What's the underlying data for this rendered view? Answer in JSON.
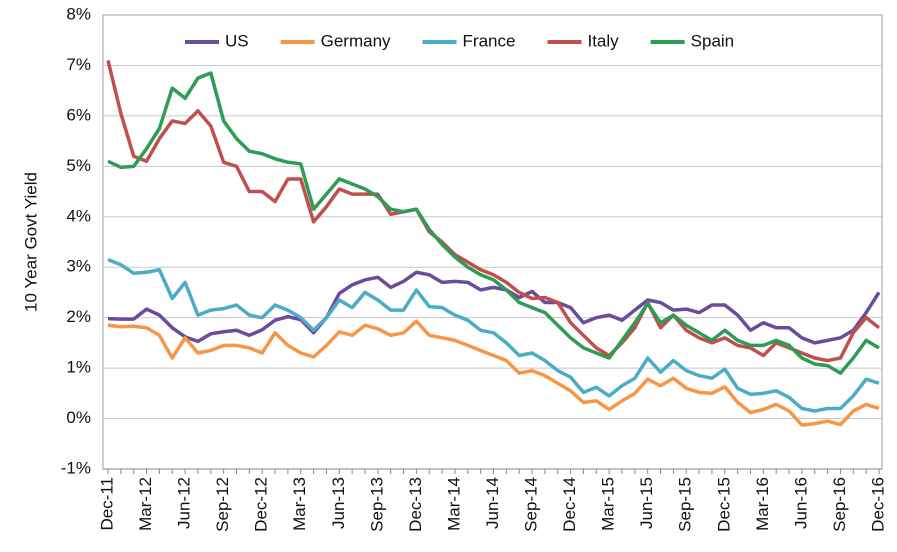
{
  "chart_data": {
    "type": "line",
    "y_label": "10 Year Govt Yield",
    "categories": [
      "Dec-11",
      null,
      null,
      "Mar-12",
      null,
      null,
      "Jun-12",
      null,
      null,
      "Sep-12",
      null,
      null,
      "Dec-12",
      null,
      null,
      "Mar-13",
      null,
      null,
      "Jun-13",
      null,
      null,
      "Sep-13",
      null,
      null,
      "Dec-13",
      null,
      null,
      "Mar-14",
      null,
      null,
      "Jun-14",
      null,
      null,
      "Sep-14",
      null,
      null,
      "Dec-14",
      null,
      null,
      "Mar-15",
      null,
      null,
      "Jun-15",
      null,
      null,
      "Sep-15",
      null,
      null,
      "Dec-15",
      null,
      null,
      "Mar-16",
      null,
      null,
      "Jun-16",
      null,
      null,
      "Sep-16",
      null,
      null,
      "Dec-16"
    ],
    "series": [
      {
        "name": "US",
        "color": "#6a4c9c",
        "values": [
          1.98,
          1.97,
          1.97,
          2.17,
          2.05,
          1.8,
          1.62,
          1.53,
          1.68,
          1.72,
          1.75,
          1.65,
          1.76,
          1.95,
          2.02,
          1.96,
          1.7,
          2.0,
          2.48,
          2.65,
          2.75,
          2.8,
          2.6,
          2.72,
          2.9,
          2.85,
          2.7,
          2.72,
          2.7,
          2.55,
          2.6,
          2.55,
          2.4,
          2.52,
          2.3,
          2.3,
          2.2,
          1.9,
          2.0,
          2.05,
          1.95,
          2.15,
          2.35,
          2.3,
          2.15,
          2.17,
          2.1,
          2.25,
          2.25,
          2.05,
          1.75,
          1.9,
          1.8,
          1.8,
          1.6,
          1.5,
          1.55,
          1.6,
          1.75,
          2.1,
          2.5
        ]
      },
      {
        "name": "Germany",
        "color": "#f79646",
        "values": [
          1.85,
          1.82,
          1.83,
          1.8,
          1.65,
          1.2,
          1.6,
          1.3,
          1.35,
          1.45,
          1.45,
          1.4,
          1.3,
          1.7,
          1.45,
          1.3,
          1.22,
          1.45,
          1.72,
          1.65,
          1.85,
          1.78,
          1.65,
          1.7,
          1.93,
          1.65,
          1.6,
          1.55,
          1.45,
          1.35,
          1.25,
          1.15,
          0.9,
          0.95,
          0.85,
          0.7,
          0.55,
          0.32,
          0.35,
          0.18,
          0.35,
          0.5,
          0.78,
          0.65,
          0.8,
          0.6,
          0.52,
          0.5,
          0.63,
          0.32,
          0.12,
          0.18,
          0.28,
          0.15,
          -0.13,
          -0.1,
          -0.05,
          -0.12,
          0.15,
          0.28,
          0.2
        ]
      },
      {
        "name": "France",
        "color": "#4bacc6",
        "values": [
          3.15,
          3.05,
          2.88,
          2.9,
          2.95,
          2.38,
          2.7,
          2.05,
          2.15,
          2.18,
          2.25,
          2.05,
          2.0,
          2.25,
          2.15,
          2.0,
          1.75,
          2.0,
          2.35,
          2.2,
          2.5,
          2.35,
          2.15,
          2.15,
          2.55,
          2.22,
          2.2,
          2.05,
          1.95,
          1.75,
          1.7,
          1.5,
          1.25,
          1.3,
          1.15,
          0.95,
          0.82,
          0.52,
          0.62,
          0.45,
          0.65,
          0.8,
          1.2,
          0.92,
          1.15,
          0.95,
          0.85,
          0.8,
          0.98,
          0.6,
          0.48,
          0.5,
          0.55,
          0.42,
          0.2,
          0.15,
          0.2,
          0.2,
          0.45,
          0.78,
          0.7
        ]
      },
      {
        "name": "Italy",
        "color": "#c0504d",
        "values": [
          7.1,
          6.05,
          5.2,
          5.1,
          5.55,
          5.9,
          5.85,
          6.1,
          5.8,
          5.08,
          5.0,
          4.5,
          4.5,
          4.3,
          4.75,
          4.75,
          3.9,
          4.2,
          4.55,
          4.45,
          4.45,
          4.45,
          4.05,
          4.1,
          4.15,
          3.7,
          3.5,
          3.25,
          3.1,
          2.95,
          2.85,
          2.7,
          2.5,
          2.38,
          2.4,
          2.3,
          1.9,
          1.65,
          1.4,
          1.25,
          1.5,
          1.8,
          2.3,
          1.8,
          2.05,
          1.75,
          1.6,
          1.5,
          1.6,
          1.45,
          1.4,
          1.25,
          1.5,
          1.4,
          1.3,
          1.2,
          1.15,
          1.2,
          1.7,
          2.0,
          1.8
        ]
      },
      {
        "name": "Spain",
        "color": "#2e9b57",
        "values": [
          5.1,
          4.98,
          5.0,
          5.35,
          5.75,
          6.55,
          6.35,
          6.75,
          6.85,
          5.9,
          5.55,
          5.3,
          5.25,
          5.15,
          5.08,
          5.05,
          4.15,
          4.45,
          4.75,
          4.65,
          4.55,
          4.4,
          4.15,
          4.1,
          4.15,
          3.75,
          3.45,
          3.2,
          3.0,
          2.85,
          2.75,
          2.55,
          2.3,
          2.2,
          2.1,
          1.85,
          1.6,
          1.4,
          1.3,
          1.2,
          1.55,
          1.9,
          2.28,
          1.9,
          2.05,
          1.85,
          1.7,
          1.55,
          1.75,
          1.55,
          1.45,
          1.45,
          1.55,
          1.45,
          1.2,
          1.08,
          1.05,
          0.9,
          1.2,
          1.55,
          1.4
        ]
      }
    ],
    "ylim": [
      -1,
      8
    ],
    "yticks": [
      {
        "value": -1,
        "label": "-1%"
      },
      {
        "value": 0,
        "label": "0%"
      },
      {
        "value": 1,
        "label": "1%"
      },
      {
        "value": 2,
        "label": "2%"
      },
      {
        "value": 3,
        "label": "3%"
      },
      {
        "value": 4,
        "label": "4%"
      },
      {
        "value": 5,
        "label": "5%"
      },
      {
        "value": 6,
        "label": "6%"
      },
      {
        "value": 7,
        "label": "7%"
      },
      {
        "value": 8,
        "label": "8%"
      }
    ],
    "grid": true,
    "legend": "top"
  }
}
